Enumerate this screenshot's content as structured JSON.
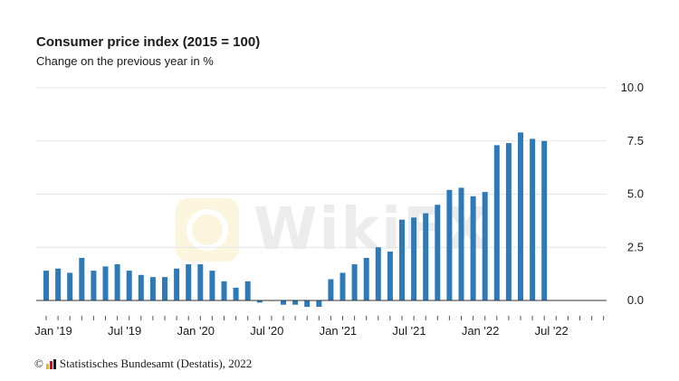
{
  "header": {
    "title": "Consumer price index (2015 = 100)",
    "subtitle": "Change on the previous year in %"
  },
  "credit": {
    "copyright_symbol": "©",
    "text": "Statistisches Bundesamt (Destatis), 2022"
  },
  "watermark": {
    "text": "WikiFX"
  },
  "colors": {
    "bar": "#2e7ab8",
    "grid": "#e6e6e6",
    "zero_line": "#333333",
    "text": "#1a1a1a"
  },
  "chart_data": {
    "type": "bar",
    "title": "Consumer price index (2015 = 100)",
    "subtitle": "Change on the previous year in %",
    "xlabel": "",
    "ylabel": "",
    "ylim": [
      -0.5,
      10.0
    ],
    "yticks": [
      "0.0",
      "2.5",
      "5.0",
      "7.5",
      "10.0"
    ],
    "ytick_values": [
      0.0,
      2.5,
      5.0,
      7.5,
      10.0
    ],
    "y_axis_side": "right",
    "grid": true,
    "total_months": 48,
    "xtick_labels": [
      {
        "index": 0,
        "label": "Jan '19"
      },
      {
        "index": 6,
        "label": "Jul '19"
      },
      {
        "index": 12,
        "label": "Jan '20"
      },
      {
        "index": 18,
        "label": "Jul '20"
      },
      {
        "index": 24,
        "label": "Jan '21"
      },
      {
        "index": 30,
        "label": "Jul '21"
      },
      {
        "index": 36,
        "label": "Jan '22"
      },
      {
        "index": 42,
        "label": "Jul '22"
      }
    ],
    "series": [
      {
        "name": "Change on the previous year in %",
        "values": [
          1.4,
          1.5,
          1.3,
          2.0,
          1.4,
          1.6,
          1.7,
          1.4,
          1.2,
          1.1,
          1.1,
          1.5,
          1.7,
          1.7,
          1.4,
          0.9,
          0.6,
          0.9,
          -0.1,
          0.0,
          -0.2,
          -0.2,
          -0.3,
          -0.3,
          1.0,
          1.3,
          1.7,
          2.0,
          2.5,
          2.3,
          3.8,
          3.9,
          4.1,
          4.5,
          5.2,
          5.3,
          4.9,
          5.1,
          7.3,
          7.4,
          7.9,
          7.6,
          7.5
        ]
      }
    ]
  }
}
